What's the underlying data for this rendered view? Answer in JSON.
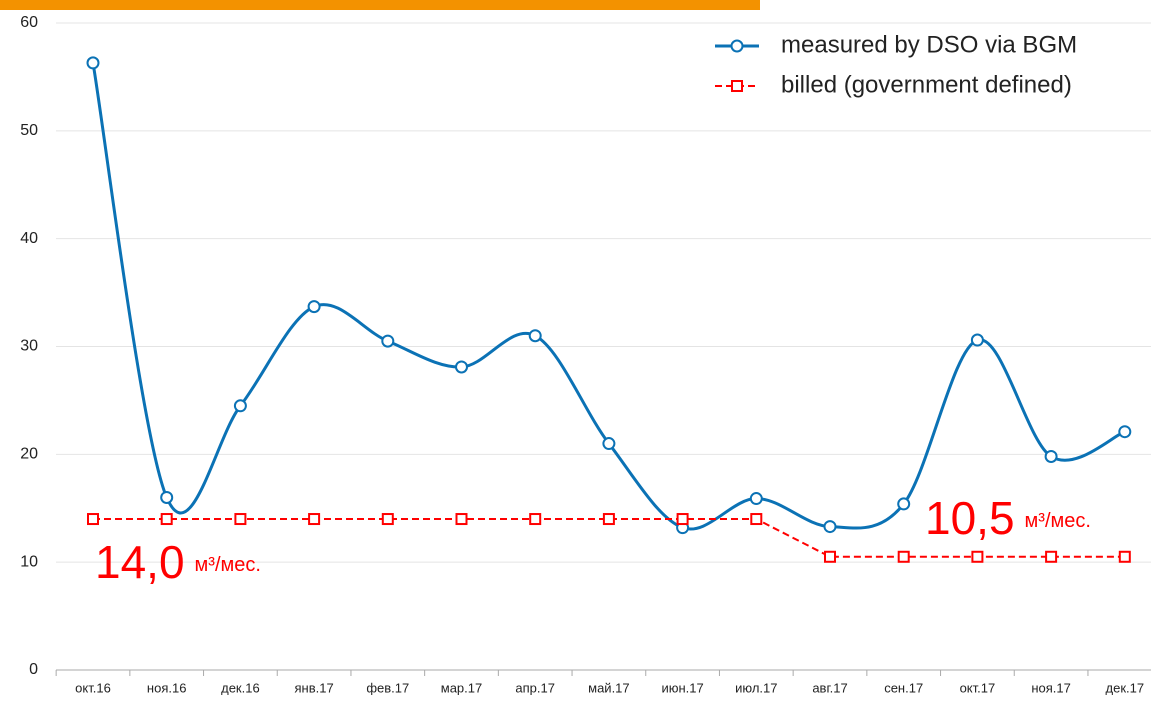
{
  "chart_data": {
    "type": "line",
    "categories": [
      "окт.16",
      "ноя.16",
      "дек.16",
      "янв.17",
      "фев.17",
      "мар.17",
      "апр.17",
      "май.17",
      "июн.17",
      "июл.17",
      "авг.17",
      "сен.17",
      "окт.17",
      "ноя.17",
      "дек.17"
    ],
    "series": [
      {
        "name": "measured by DSO via BGM",
        "color": "#0b72b5",
        "style": "smooth",
        "marker": "circle",
        "values": [
          56.3,
          16.0,
          24.5,
          33.7,
          30.5,
          28.1,
          31.0,
          21.0,
          13.2,
          15.9,
          13.3,
          15.4,
          30.6,
          19.8,
          22.1
        ]
      },
      {
        "name": "billed (government defined)",
        "color": "#ff0000",
        "style": "dashed",
        "marker": "square",
        "values": [
          14,
          14,
          14,
          14,
          14,
          14,
          14,
          14,
          14,
          14,
          10.5,
          10.5,
          10.5,
          10.5,
          10.5
        ]
      }
    ],
    "annotations": [
      {
        "text": "14,0",
        "unit": "м³/мес."
      },
      {
        "text": "10,5",
        "unit": "м³/мес."
      }
    ],
    "ylim": [
      0,
      60
    ],
    "yticks": [
      0,
      10,
      20,
      30,
      40,
      50,
      60
    ],
    "grid": true,
    "legend": "upper right"
  }
}
